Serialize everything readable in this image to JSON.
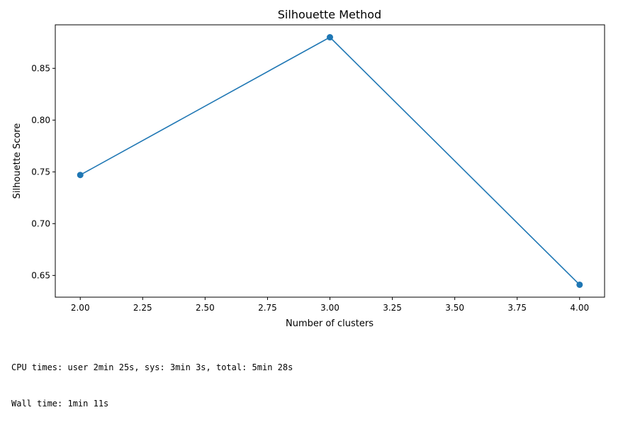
{
  "chart_data": {
    "type": "line",
    "title": "Silhouette Method",
    "xlabel": "Number of clusters",
    "ylabel": "Silhouette Score",
    "x": [
      2.0,
      3.0,
      4.0
    ],
    "series": [
      {
        "values": [
          0.747,
          0.88,
          0.641
        ],
        "color": "#1f77b4",
        "marker": "circle"
      }
    ],
    "xlim": [
      1.9,
      4.1
    ],
    "ylim": [
      0.629,
      0.892
    ],
    "xticks": [
      2.0,
      2.25,
      2.5,
      2.75,
      3.0,
      3.25,
      3.5,
      3.75,
      4.0
    ],
    "xtick_labels": [
      "2.00",
      "2.25",
      "2.50",
      "2.75",
      "3.00",
      "3.25",
      "3.50",
      "3.75",
      "4.00"
    ],
    "yticks": [
      0.65,
      0.7,
      0.75,
      0.8,
      0.85
    ],
    "ytick_labels": [
      "0.65",
      "0.70",
      "0.75",
      "0.80",
      "0.85"
    ],
    "grid": false,
    "legend": "none"
  },
  "output": {
    "cpu_times": "CPU times: user 2min 25s, sys: 3min 3s, total: 5min 28s",
    "wall_time": "Wall time: 1min 11s"
  }
}
